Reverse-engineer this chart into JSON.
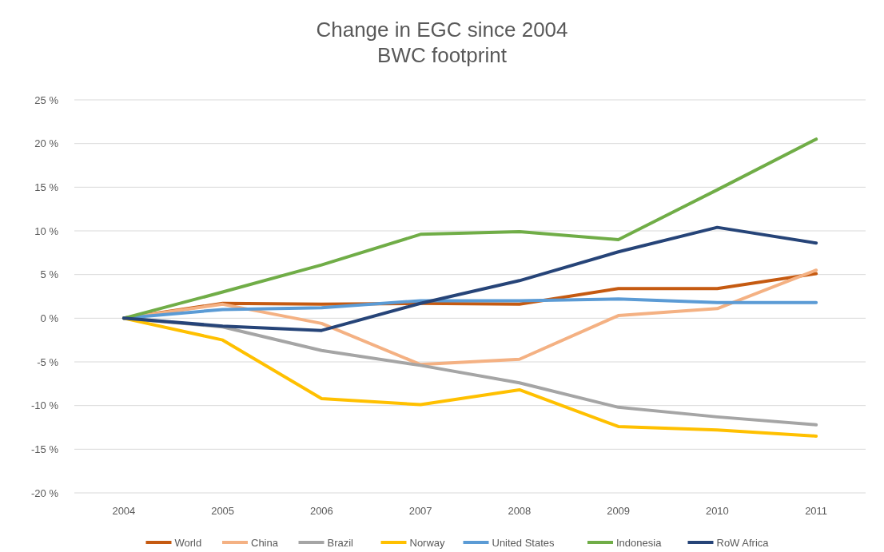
{
  "chart_data": {
    "type": "line",
    "title": "Change in EGC since 2004",
    "subtitle": "BWC footprint",
    "categories": [
      "2004",
      "2005",
      "2006",
      "2007",
      "2008",
      "2009",
      "2010",
      "2011"
    ],
    "series": [
      {
        "name": "World",
        "color": "#c55a11",
        "values": [
          0,
          1.7,
          1.6,
          1.7,
          1.6,
          3.4,
          3.4,
          5.1
        ]
      },
      {
        "name": "China",
        "color": "#f4b183",
        "values": [
          0,
          1.6,
          -0.6,
          -5.3,
          -4.7,
          0.3,
          1.1,
          5.5
        ]
      },
      {
        "name": "Brazil",
        "color": "#a5a5a5",
        "values": [
          0,
          -1.0,
          -3.7,
          -5.4,
          -7.4,
          -10.2,
          -11.3,
          -12.2
        ]
      },
      {
        "name": "Norway",
        "color": "#ffc000",
        "values": [
          0,
          -2.5,
          -9.2,
          -9.9,
          -8.2,
          -12.4,
          -12.8,
          -13.5
        ]
      },
      {
        "name": "United States",
        "color": "#5b9bd5",
        "values": [
          0,
          1.0,
          1.2,
          2.0,
          2.0,
          2.2,
          1.8,
          1.8
        ]
      },
      {
        "name": "Indonesia",
        "color": "#70ad47",
        "values": [
          0,
          3.0,
          6.1,
          9.6,
          9.9,
          9.0,
          14.7,
          20.5
        ]
      },
      {
        "name": "RoW Africa",
        "color": "#264478",
        "values": [
          0,
          -0.9,
          -1.4,
          1.7,
          4.3,
          7.6,
          10.4,
          8.6
        ]
      }
    ],
    "ylim": [
      -20,
      25
    ],
    "yticks": [
      {
        "value": -20,
        "label": "-20 %"
      },
      {
        "value": -15,
        "label": "-15 %"
      },
      {
        "value": -10,
        "label": "-10 %"
      },
      {
        "value": -5,
        "label": "-5 %"
      },
      {
        "value": 0,
        "label": "0 %"
      },
      {
        "value": 5,
        "label": "5 %"
      },
      {
        "value": 10,
        "label": "10 %"
      },
      {
        "value": 15,
        "label": "15 %"
      },
      {
        "value": 20,
        "label": "20 %"
      },
      {
        "value": 25,
        "label": "25 %"
      }
    ],
    "grid": "y",
    "legend": "bottom",
    "marker": "none",
    "line_style": "solid"
  }
}
